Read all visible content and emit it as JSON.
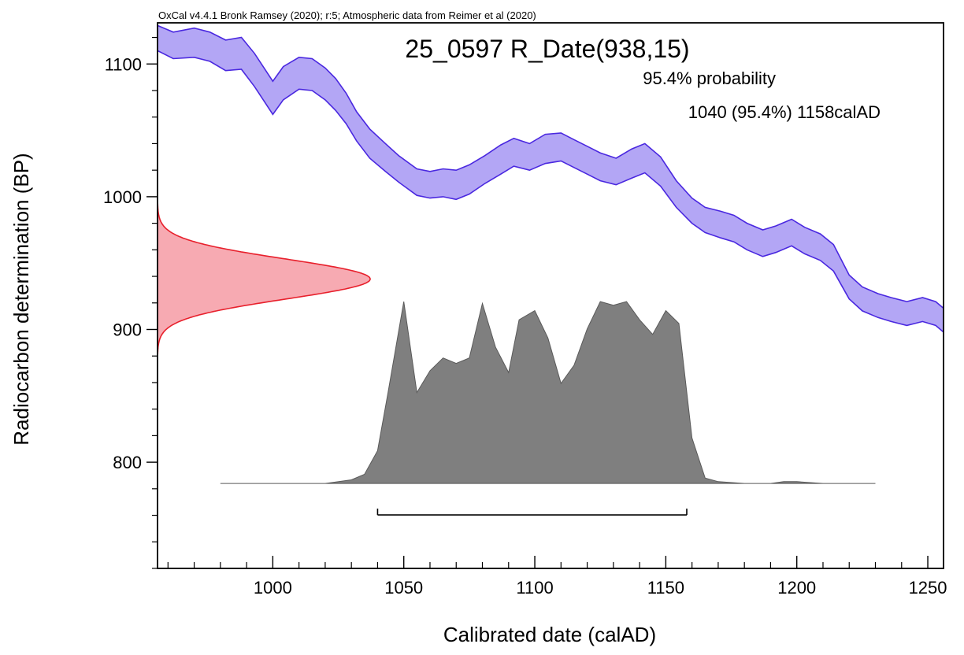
{
  "chart_data": {
    "type": "area",
    "credit": "OxCal v4.4.1 Bronk Ramsey (2020); r:5; Atmospheric data from Reimer et al (2020)",
    "title": "25_0597 R_Date(938,15)",
    "probability_heading": "95.4% probability",
    "range_text": "1040 (95.4%) 1158calAD",
    "xlabel": "Calibrated date (calAD)",
    "ylabel": "Radiocarbon determination (BP)",
    "xlim": [
      956,
      1256
    ],
    "ylim": [
      720,
      1131
    ],
    "x_ticks": [
      1000,
      1050,
      1100,
      1150,
      1200,
      1250
    ],
    "y_ticks": [
      800,
      900,
      1000,
      1100
    ],
    "colors": {
      "calibration_curve_fill": "#b3a6f5",
      "calibration_curve_stroke": "#4a28e0",
      "measurement_fill": "#f7aab2",
      "measurement_stroke": "#e8202c",
      "posterior_fill": "#7f7f7f",
      "posterior_stroke": "#5a5a5a",
      "range_bar": "#000000"
    },
    "range_bar": {
      "from": 1040,
      "to": 1158
    },
    "calibration_curve": {
      "x": [
        956,
        962,
        970,
        976,
        982,
        988,
        993,
        1000,
        1004,
        1010,
        1015,
        1020,
        1024,
        1028,
        1032,
        1037,
        1043,
        1048,
        1055,
        1060,
        1065,
        1070,
        1075,
        1081,
        1087,
        1092,
        1098,
        1104,
        1110,
        1115,
        1120,
        1125,
        1131,
        1137,
        1142,
        1148,
        1154,
        1160,
        1165,
        1171,
        1176,
        1181,
        1187,
        1192,
        1198,
        1203,
        1209,
        1214,
        1220,
        1225,
        1231,
        1236,
        1242,
        1248,
        1253,
        1256
      ],
      "upper": [
        1129,
        1124,
        1127,
        1124,
        1118,
        1120,
        1108,
        1087,
        1098,
        1105,
        1104,
        1097,
        1089,
        1078,
        1064,
        1051,
        1040,
        1031,
        1021,
        1019,
        1021,
        1020,
        1024,
        1031,
        1039,
        1044,
        1040,
        1047,
        1048,
        1043,
        1038,
        1033,
        1029,
        1036,
        1040,
        1030,
        1012,
        999,
        992,
        989,
        986,
        980,
        975,
        978,
        983,
        977,
        972,
        964,
        941,
        932,
        927,
        924,
        921,
        924,
        921,
        916
      ],
      "lower": [
        1110,
        1104,
        1105,
        1102,
        1095,
        1096,
        1083,
        1062,
        1073,
        1081,
        1080,
        1073,
        1065,
        1055,
        1042,
        1029,
        1019,
        1011,
        1001,
        999,
        1000,
        998,
        1002,
        1010,
        1017,
        1023,
        1020,
        1025,
        1027,
        1022,
        1017,
        1012,
        1009,
        1014,
        1018,
        1008,
        992,
        980,
        973,
        969,
        966,
        960,
        955,
        958,
        963,
        957,
        952,
        944,
        923,
        914,
        909,
        906,
        903,
        906,
        903,
        898
      ]
    },
    "measurement_distribution": {
      "bp_mean": 938,
      "bp_sigma": 15,
      "bp_range": [
        881,
        995
      ]
    },
    "posterior_distribution": {
      "baseline_bp": 784,
      "height_bp": 137,
      "x": [
        980,
        1000,
        1020,
        1030,
        1035,
        1040,
        1044,
        1050,
        1055,
        1060,
        1065,
        1070,
        1075,
        1080,
        1085,
        1090,
        1094,
        1100,
        1105,
        1110,
        1115,
        1120,
        1125,
        1130,
        1135,
        1140,
        1145,
        1150,
        1155,
        1160,
        1165,
        1170,
        1180,
        1190,
        1195,
        1200,
        1210,
        1230
      ],
      "prob": [
        0.0,
        0.0,
        0.0,
        0.02,
        0.05,
        0.18,
        0.5,
        1.0,
        0.5,
        0.62,
        0.69,
        0.66,
        0.69,
        0.99,
        0.75,
        0.61,
        0.9,
        0.95,
        0.8,
        0.55,
        0.65,
        0.85,
        1.0,
        0.98,
        1.0,
        0.9,
        0.82,
        0.95,
        0.88,
        0.25,
        0.03,
        0.01,
        0.0,
        0.0,
        0.01,
        0.01,
        0.0,
        0.0
      ]
    }
  }
}
